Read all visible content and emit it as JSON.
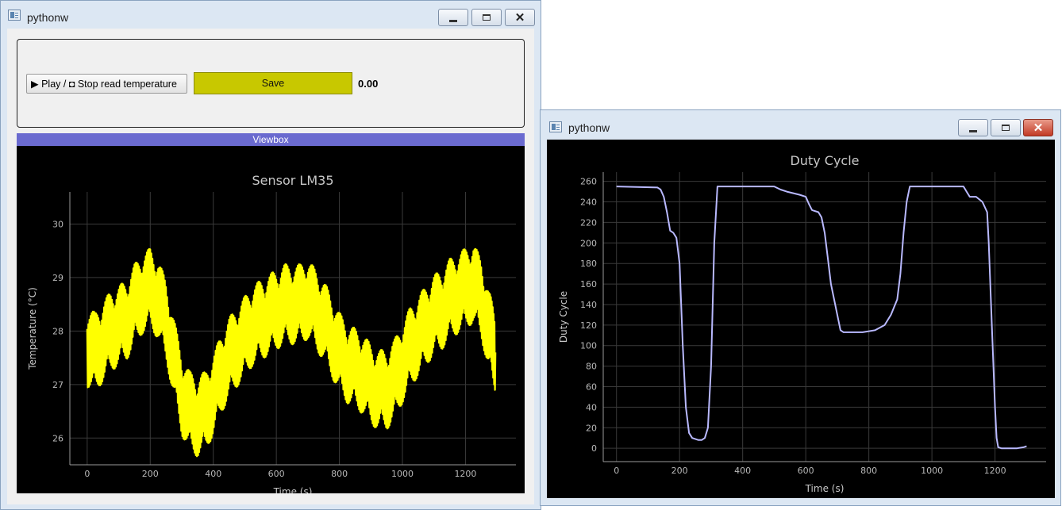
{
  "left_window": {
    "title": "pythonw",
    "play_button_label": "▶ Play / ◘ Stop read temperature",
    "save_button_label": "Save",
    "value_display": "0.00",
    "viewbox_label": "Viewbox"
  },
  "right_window": {
    "title": "pythonw"
  },
  "colors": {
    "temperature_trace": "#ffff00",
    "duty_trace": "#b9b9ff",
    "save_button": "#c8c800",
    "viewbox_header": "#6a6acf",
    "plot_background": "#000000"
  },
  "chart_data": [
    {
      "type": "line",
      "title": "Sensor LM35",
      "xlabel": "Time (s)",
      "ylabel": "Temperature (°C)",
      "xlim": [
        -55,
        1360
      ],
      "ylim": [
        25.5,
        30.6
      ],
      "xticks": [
        0,
        200,
        400,
        600,
        800,
        1000,
        1200
      ],
      "yticks": [
        26,
        27,
        28,
        29,
        30
      ],
      "grid": true,
      "noise_band": 0.75,
      "series": [
        {
          "x": [
            0,
            25,
            50,
            75,
            100,
            125,
            150,
            175,
            200,
            225,
            250,
            275,
            300,
            325,
            350,
            375,
            400,
            425,
            450,
            475,
            500,
            525,
            550,
            575,
            600,
            625,
            650,
            675,
            700,
            725,
            750,
            775,
            800,
            825,
            850,
            875,
            900,
            925,
            950,
            975,
            1000,
            1025,
            1050,
            1075,
            1100,
            1125,
            1150,
            1175,
            1200,
            1225,
            1250,
            1275,
            1295
          ],
          "y": [
            27.7,
            27.6,
            27.8,
            28.0,
            28.1,
            28.2,
            28.5,
            28.7,
            28.8,
            28.6,
            28.2,
            27.5,
            26.8,
            26.5,
            26.4,
            26.5,
            26.8,
            27.2,
            27.5,
            27.7,
            27.9,
            28.1,
            28.2,
            28.3,
            28.4,
            28.5,
            28.5,
            28.5,
            28.6,
            28.4,
            28.2,
            27.9,
            27.6,
            27.4,
            27.3,
            27.2,
            27.0,
            26.9,
            26.9,
            27.1,
            27.4,
            27.7,
            27.9,
            28.1,
            28.3,
            28.4,
            28.6,
            28.7,
            28.8,
            28.9,
            28.6,
            28.0,
            27.6
          ]
        }
      ]
    },
    {
      "type": "line",
      "title": "Duty Cycle",
      "xlabel": "Time (s)",
      "ylabel": "Duty Cycle",
      "xlim": [
        -42,
        1362
      ],
      "ylim": [
        -13,
        269
      ],
      "xticks": [
        0,
        200,
        400,
        600,
        800,
        1000,
        1200
      ],
      "yticks": [
        0,
        20,
        40,
        60,
        80,
        100,
        120,
        140,
        160,
        180,
        200,
        220,
        240,
        260
      ],
      "grid": true,
      "series": [
        {
          "x": [
            0,
            130,
            140,
            150,
            160,
            170,
            180,
            190,
            200,
            210,
            220,
            230,
            240,
            260,
            270,
            280,
            290,
            300,
            310,
            320,
            330,
            500,
            520,
            540,
            580,
            600,
            610,
            620,
            640,
            650,
            660,
            670,
            680,
            690,
            700,
            710,
            720,
            730,
            780,
            820,
            850,
            870,
            890,
            900,
            910,
            920,
            930,
            940,
            1000,
            1100,
            1110,
            1120,
            1140,
            1160,
            1175,
            1180,
            1190,
            1200,
            1205,
            1210,
            1220,
            1230,
            1250,
            1270,
            1290,
            1300
          ],
          "y": [
            255,
            254,
            252,
            245,
            230,
            212,
            210,
            205,
            180,
            100,
            40,
            15,
            10,
            8,
            8,
            10,
            20,
            80,
            200,
            255,
            255,
            255,
            252,
            250,
            247,
            245,
            238,
            232,
            230,
            225,
            210,
            185,
            160,
            145,
            130,
            115,
            113,
            113,
            113,
            115,
            120,
            130,
            145,
            170,
            210,
            240,
            255,
            255,
            255,
            255,
            250,
            245,
            245,
            240,
            230,
            200,
            120,
            40,
            10,
            1,
            0,
            0,
            0,
            0,
            1,
            2
          ]
        }
      ]
    }
  ]
}
